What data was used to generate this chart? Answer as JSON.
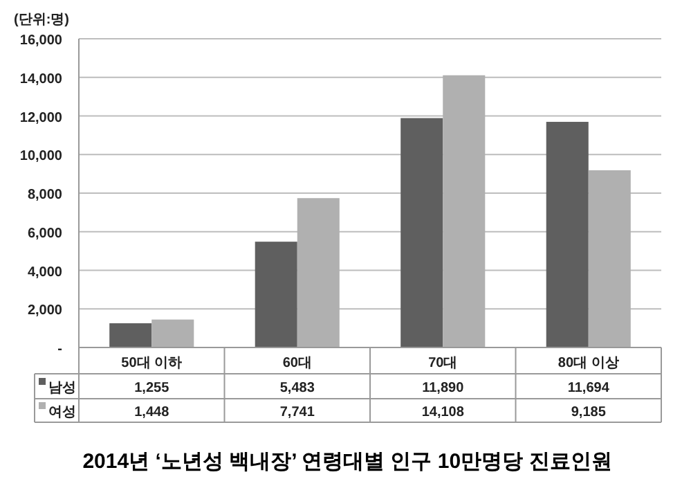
{
  "chart_data": {
    "type": "bar",
    "title": "2014년 ‘노년성 백내장’ 연령대별 인구 10만명당 진료인원",
    "annotations": [
      "(단위:명)"
    ],
    "categories": [
      "50대 이하",
      "60대",
      "70대",
      "80대 이상"
    ],
    "series": [
      {
        "name": "남성",
        "color": "#5f5f5f",
        "values": [
          1255,
          5483,
          11890,
          11694
        ],
        "value_labels": [
          "1,255",
          "5,483",
          "11,890",
          "11,694"
        ]
      },
      {
        "name": "여성",
        "color": "#b0b0b0",
        "values": [
          1448,
          7741,
          14108,
          9185
        ],
        "value_labels": [
          "1,448",
          "7,741",
          "14,108",
          "9,185"
        ]
      }
    ],
    "ylim": [
      0,
      16000
    ],
    "yticks": [
      {
        "value": 0,
        "label": "-"
      },
      {
        "value": 2000,
        "label": "2,000"
      },
      {
        "value": 4000,
        "label": "4,000"
      },
      {
        "value": 6000,
        "label": "6,000"
      },
      {
        "value": 8000,
        "label": "8,000"
      },
      {
        "value": 10000,
        "label": "10,000"
      },
      {
        "value": 12000,
        "label": "12,000"
      },
      {
        "value": 14000,
        "label": "14,000"
      },
      {
        "value": 16000,
        "label": "16,000"
      }
    ],
    "grid": "y",
    "legend": "bottom"
  }
}
